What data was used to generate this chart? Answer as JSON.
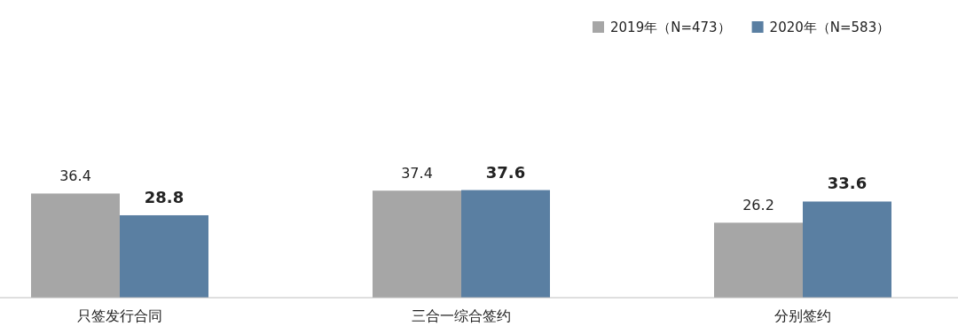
{
  "chart_data": {
    "type": "bar",
    "relative": false,
    "categories": [
      "只签发行合同",
      "三合一综合签约",
      "分别签约"
    ],
    "series": [
      {
        "name": "2019年（N=473）",
        "color": "#a6a6a6",
        "values": [
          36.4,
          37.4,
          26.2
        ]
      },
      {
        "name": "2020年（N=583）",
        "color": "#5a7fa2",
        "values": [
          28.8,
          37.6,
          33.6
        ]
      }
    ],
    "data_labels": true,
    "legend": "top right"
  }
}
